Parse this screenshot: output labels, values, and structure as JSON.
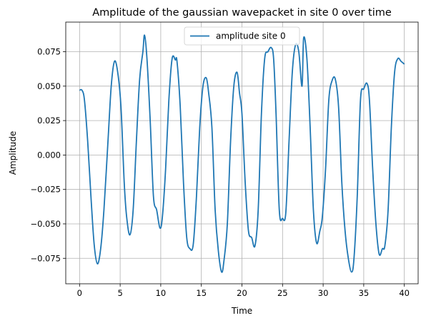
{
  "chart_data": {
    "type": "line",
    "title": "Amplitude of the gaussian wavepacket in site 0 over time",
    "xlabel": "Time",
    "ylabel": "Amplitude",
    "xlim": [
      -1.7,
      41.7
    ],
    "ylim": [
      -0.0935,
      0.0965
    ],
    "xticks": [
      0,
      5,
      10,
      15,
      20,
      25,
      30,
      35,
      40
    ],
    "yticks": [
      -0.075,
      -0.05,
      -0.025,
      0.0,
      0.025,
      0.05,
      0.075
    ],
    "xtick_labels": [
      "0",
      "5",
      "10",
      "15",
      "20",
      "25",
      "30",
      "35",
      "40"
    ],
    "ytick_labels": [
      "−0.075",
      "−0.050",
      "−0.025",
      "0.000",
      "0.025",
      "0.050",
      "0.075"
    ],
    "grid": true,
    "legend": {
      "placement": "top-center",
      "entries": [
        "amplitude site 0"
      ]
    },
    "series": [
      {
        "name": "amplitude site 0",
        "color": "#1f77b4",
        "x": [
          0.0,
          0.3,
          0.6,
          1.0,
          1.4,
          1.8,
          2.2,
          2.6,
          3.0,
          3.5,
          3.9,
          4.3,
          4.7,
          5.1,
          5.5,
          5.8,
          6.2,
          6.6,
          7.0,
          7.4,
          7.8,
          8.0,
          8.3,
          8.7,
          9.1,
          9.5,
          9.9,
          10.2,
          10.6,
          11.0,
          11.4,
          11.8,
          12.0,
          12.4,
          12.8,
          13.2,
          13.6,
          14.0,
          14.4,
          14.8,
          15.2,
          15.6,
          15.9,
          16.3,
          16.7,
          17.1,
          17.5,
          17.8,
          18.2,
          18.6,
          19.0,
          19.4,
          19.7,
          20.0,
          20.4,
          20.8,
          21.2,
          21.6,
          22.0,
          22.4,
          22.8,
          23.2,
          23.6,
          23.9,
          24.2,
          24.6,
          25.0,
          25.4,
          25.8,
          26.2,
          26.6,
          27.0,
          27.4,
          27.6,
          28.0,
          28.4,
          28.8,
          29.2,
          29.6,
          29.9,
          30.3,
          30.7,
          31.1,
          31.5,
          31.9,
          32.3,
          32.7,
          33.1,
          33.5,
          33.8,
          34.2,
          34.6,
          35.0,
          35.4,
          35.7,
          36.1,
          36.5,
          36.9,
          37.3,
          37.6,
          38.0,
          38.4,
          38.8,
          39.2,
          39.6,
          40.0
        ],
        "y": [
          0.047,
          0.047,
          0.04,
          0.01,
          -0.03,
          -0.065,
          -0.079,
          -0.068,
          -0.04,
          0.01,
          0.05,
          0.068,
          0.06,
          0.035,
          -0.02,
          -0.045,
          -0.058,
          -0.04,
          0.01,
          0.055,
          0.075,
          0.087,
          0.07,
          0.025,
          -0.03,
          -0.04,
          -0.053,
          -0.045,
          -0.01,
          0.04,
          0.07,
          0.069,
          0.068,
          0.035,
          -0.02,
          -0.06,
          -0.068,
          -0.065,
          -0.03,
          0.02,
          0.05,
          0.056,
          0.045,
          0.02,
          -0.04,
          -0.07,
          -0.085,
          -0.076,
          -0.05,
          0.01,
          0.05,
          0.06,
          0.045,
          0.03,
          -0.02,
          -0.055,
          -0.06,
          -0.066,
          -0.04,
          0.03,
          0.07,
          0.075,
          0.078,
          0.07,
          0.03,
          -0.04,
          -0.046,
          -0.042,
          0.01,
          0.06,
          0.08,
          0.075,
          0.05,
          0.085,
          0.07,
          0.02,
          -0.04,
          -0.064,
          -0.055,
          -0.045,
          -0.01,
          0.04,
          0.054,
          0.055,
          0.035,
          -0.02,
          -0.055,
          -0.075,
          -0.085,
          -0.075,
          -0.03,
          0.04,
          0.048,
          0.052,
          0.04,
          -0.01,
          -0.05,
          -0.072,
          -0.068,
          -0.066,
          -0.04,
          0.02,
          0.06,
          0.07,
          0.068,
          0.066
        ]
      }
    ]
  }
}
